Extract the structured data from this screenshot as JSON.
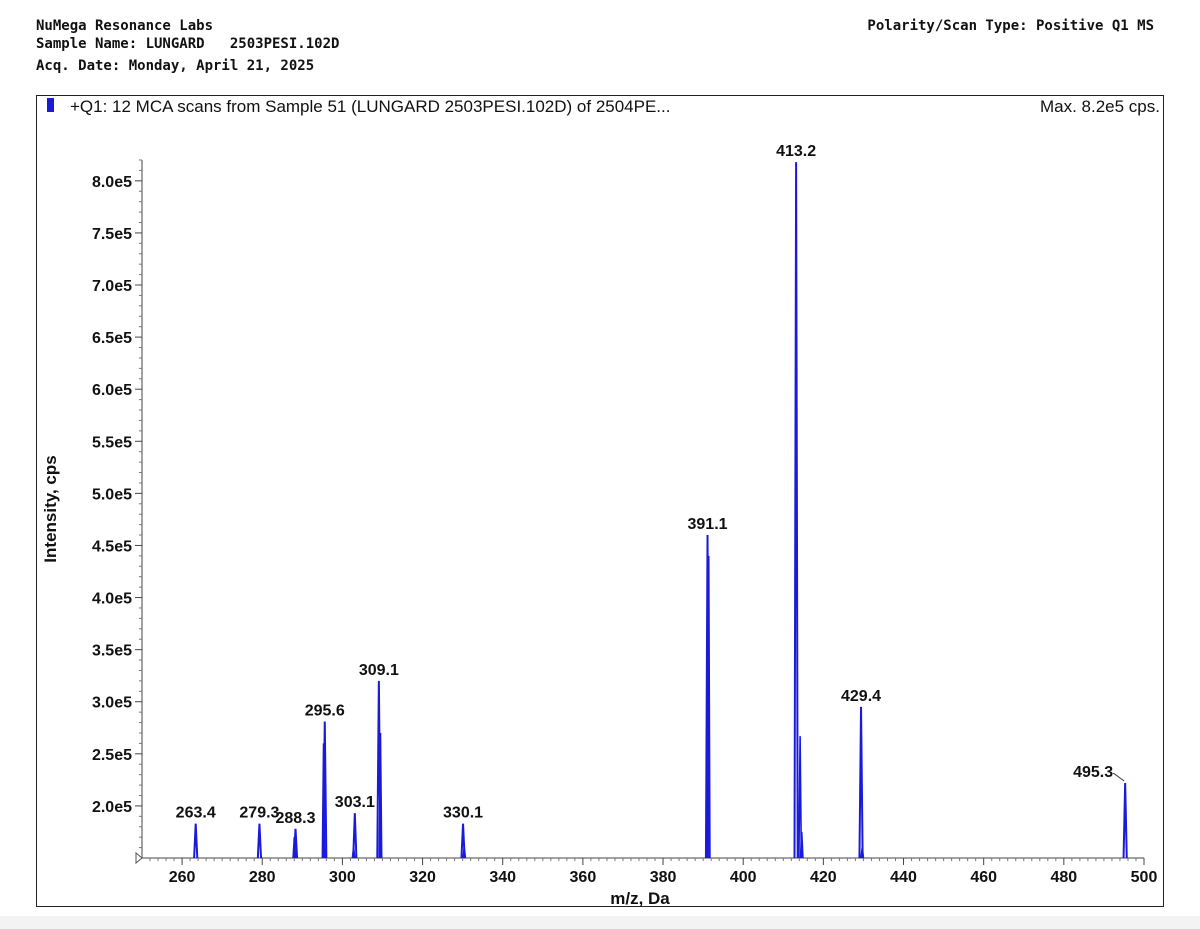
{
  "header": {
    "lab": "NuMega Resonance Labs",
    "sample_name": "Sample Name: LUNGARD   2503PESI.102D",
    "acq_date": "Acq. Date: Monday, April 21, 2025",
    "polarity": "Polarity/Scan Type: Positive Q1 MS"
  },
  "chart_data": {
    "type": "line",
    "title": "+Q1: 12 MCA scans from Sample 51 (LUNGARD   2503PESI.102D) of 2504PE...",
    "max_label": "Max. 8.2e5 cps.",
    "xlabel": "m/z, Da",
    "ylabel": "Intensity, cps",
    "xlim": [
      250,
      500
    ],
    "ylim": [
      150000,
      820000
    ],
    "x_ticks": [
      260,
      280,
      300,
      320,
      340,
      360,
      380,
      400,
      420,
      440,
      460,
      480,
      500
    ],
    "y_ticks": [
      200000,
      250000,
      300000,
      350000,
      400000,
      450000,
      500000,
      550000,
      600000,
      650000,
      700000,
      750000,
      800000
    ],
    "y_tick_labels": [
      "2.0e5",
      "2.5e5",
      "3.0e5",
      "3.5e5",
      "4.0e5",
      "4.5e5",
      "5.0e5",
      "5.5e5",
      "6.0e5",
      "6.5e5",
      "7.0e5",
      "7.5e5",
      "8.0e5"
    ],
    "series_color": "#1a1adb",
    "peaks": [
      {
        "mz": 263.4,
        "intensity": 183000,
        "label": "263.4"
      },
      {
        "mz": 279.3,
        "intensity": 183000,
        "label": "279.3"
      },
      {
        "mz": 288.3,
        "intensity": 178000,
        "label": "288.3"
      },
      {
        "mz": 295.6,
        "intensity": 281000,
        "label": "295.6"
      },
      {
        "mz": 303.1,
        "intensity": 193000,
        "label": "303.1"
      },
      {
        "mz": 309.1,
        "intensity": 320000,
        "label": "309.1"
      },
      {
        "mz": 330.1,
        "intensity": 183000,
        "label": "330.1"
      },
      {
        "mz": 391.1,
        "intensity": 460000,
        "label": "391.1"
      },
      {
        "mz": 413.2,
        "intensity": 818000,
        "label": "413.2"
      },
      {
        "mz": 429.4,
        "intensity": 295000,
        "label": "429.4"
      },
      {
        "mz": 495.3,
        "intensity": 222000,
        "label": "495.3"
      }
    ],
    "minor_peaks": [
      {
        "mz": 288.0,
        "intensity": 170000
      },
      {
        "mz": 295.3,
        "intensity": 260000
      },
      {
        "mz": 302.8,
        "intensity": 160000
      },
      {
        "mz": 309.5,
        "intensity": 270000
      },
      {
        "mz": 330.4,
        "intensity": 160000
      },
      {
        "mz": 391.4,
        "intensity": 440000
      },
      {
        "mz": 414.2,
        "intensity": 267000
      },
      {
        "mz": 414.6,
        "intensity": 175000
      },
      {
        "mz": 429.7,
        "intensity": 160000
      }
    ]
  }
}
